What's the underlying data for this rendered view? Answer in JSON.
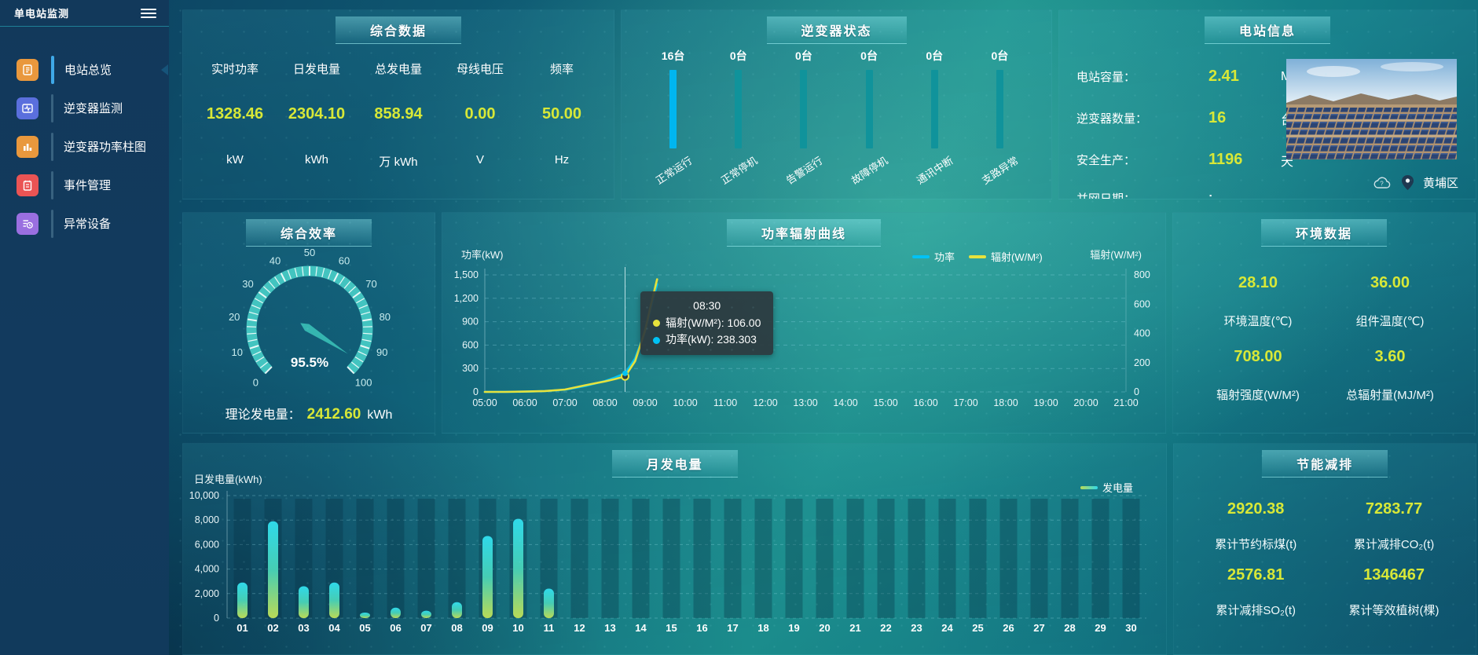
{
  "app_title": "单电站监测",
  "sidebar": {
    "items": [
      {
        "label": "电站总览",
        "active": true
      },
      {
        "label": "逆变器监测",
        "active": false
      },
      {
        "label": "逆变器功率柱图",
        "active": false
      },
      {
        "label": "事件管理",
        "active": false
      },
      {
        "label": "异常设备",
        "active": false
      }
    ]
  },
  "panels": {
    "overview": {
      "title": "综合数据",
      "metrics": [
        {
          "label": "实时功率",
          "value": "1328.46",
          "unit": "kW"
        },
        {
          "label": "日发电量",
          "value": "2304.10",
          "unit": "kWh"
        },
        {
          "label": "总发电量",
          "value": "858.94",
          "unit": "万 kWh"
        },
        {
          "label": "母线电压",
          "value": "0.00",
          "unit": "V"
        },
        {
          "label": "频率",
          "value": "50.00",
          "unit": "Hz"
        }
      ]
    },
    "inverter": {
      "title": "逆变器状态"
    },
    "station": {
      "title": "电站信息",
      "rows": [
        {
          "label": "电站容量：",
          "value": "2.41",
          "unit": "MW"
        },
        {
          "label": "逆变器数量：",
          "value": "16",
          "unit": "台"
        },
        {
          "label": "安全生产：",
          "value": "1196",
          "unit": "天"
        },
        {
          "label": "并网日期：",
          "value": ":",
          "unit": ""
        }
      ],
      "location": "黄埔区"
    },
    "efficiency": {
      "title": "综合效率",
      "theory_label": "理论发电量：",
      "theory_value": "2412.60",
      "theory_unit": "kWh"
    },
    "curve": {
      "title": "功率辐射曲线"
    },
    "environment": {
      "title": "环境数据",
      "metrics": [
        {
          "value": "28.10",
          "label": "环境温度(℃)"
        },
        {
          "value": "36.00",
          "label": "组件温度(℃)"
        },
        {
          "value": "708.00",
          "label": "辐射强度(W/M²)"
        },
        {
          "value": "3.60",
          "label": "总辐射量(MJ/M²)"
        }
      ]
    },
    "monthly": {
      "title": "月发电量"
    },
    "saving": {
      "title": "节能减排",
      "metrics": [
        {
          "value": "2920.38",
          "label": "累计节约标煤(t)"
        },
        {
          "value": "7283.77",
          "label": "累计减排CO₂(t)"
        },
        {
          "value": "2576.81",
          "label": "累计减排SO₂(t)"
        },
        {
          "value": "1346467",
          "label": "累计等效植树(棵)"
        }
      ]
    }
  },
  "colors": {
    "accent_yellow": "#d8e837",
    "bar_highlight_blue": "#00b6f0",
    "bar_teal": "#10939b",
    "line_power": "#00c2f5",
    "line_radiation": "#e6e23c",
    "gauge_ring": "#43c4c0"
  },
  "chart_data": [
    {
      "id": "inverter_status",
      "type": "bar",
      "title": "逆变器状态",
      "categories": [
        "正常运行",
        "正常停机",
        "告警运行",
        "故障停机",
        "通讯中断",
        "支路异常"
      ],
      "values": [
        16,
        0,
        0,
        0,
        0,
        0
      ],
      "unit": "台",
      "highlight_color": "#00b6f0",
      "bar_color": "#10939b"
    },
    {
      "id": "efficiency_gauge",
      "type": "gauge",
      "title": "综合效率",
      "value": 95.5,
      "display": "95.5%",
      "min": 0,
      "max": 100,
      "tick_interval": 10
    },
    {
      "id": "power_radiation",
      "type": "line",
      "title": "功率辐射曲线",
      "x_ticks": [
        "05:00",
        "06:00",
        "07:00",
        "08:00",
        "09:00",
        "10:00",
        "11:00",
        "12:00",
        "13:00",
        "14:00",
        "15:00",
        "16:00",
        "17:00",
        "18:00",
        "19:00",
        "20:00",
        "21:00"
      ],
      "x_range": [
        5,
        21
      ],
      "left_axis": {
        "label": "功率(kW)",
        "ticks": [
          0,
          300,
          600,
          900,
          1200,
          1500
        ],
        "max": 1500
      },
      "right_axis": {
        "label": "辐射(W/M²)",
        "ticks": [
          0,
          200,
          400,
          600,
          800
        ],
        "max": 800
      },
      "series": [
        {
          "name": "功率",
          "color": "#00c2f5",
          "axis": "left",
          "points": [
            [
              5,
              0
            ],
            [
              5.5,
              1
            ],
            [
              6,
              3
            ],
            [
              6.5,
              10
            ],
            [
              7,
              28
            ],
            [
              7.5,
              75
            ],
            [
              8,
              140
            ],
            [
              8.25,
              185
            ],
            [
              8.5,
              238.3
            ],
            [
              8.75,
              430
            ],
            [
              9,
              780
            ],
            [
              9.15,
              1080
            ],
            [
              9.3,
              1380
            ]
          ]
        },
        {
          "name": "辐射(W/M²)",
          "color": "#e6e23c",
          "axis": "right",
          "points": [
            [
              5,
              0
            ],
            [
              5.5,
              0
            ],
            [
              6,
              2
            ],
            [
              6.5,
              6
            ],
            [
              7,
              16
            ],
            [
              7.5,
              45
            ],
            [
              8,
              72
            ],
            [
              8.25,
              88
            ],
            [
              8.5,
              106
            ],
            [
              8.75,
              210
            ],
            [
              9,
              420
            ],
            [
              9.15,
              600
            ],
            [
              9.3,
              770
            ]
          ]
        }
      ],
      "crosshair_x": 8.5,
      "tooltip": {
        "time": "08:30",
        "items": [
          {
            "label": "辐射(W/M²)",
            "value": "106.00",
            "color": "#e6e23c"
          },
          {
            "label": "功率(kW)",
            "value": "238.303",
            "color": "#00c2f5"
          }
        ]
      }
    },
    {
      "id": "monthly_energy",
      "type": "bar",
      "title": "月发电量",
      "ylabel": "日发电量(kWh)",
      "legend": "发电量",
      "categories": [
        "01",
        "02",
        "03",
        "04",
        "05",
        "06",
        "07",
        "08",
        "09",
        "10",
        "11",
        "12",
        "13",
        "14",
        "15",
        "16",
        "17",
        "18",
        "19",
        "20",
        "21",
        "22",
        "23",
        "24",
        "25",
        "26",
        "27",
        "28",
        "29",
        "30"
      ],
      "values": [
        2900,
        7900,
        2600,
        2900,
        450,
        850,
        600,
        1300,
        6700,
        8100,
        2400,
        0,
        0,
        0,
        0,
        0,
        0,
        0,
        0,
        0,
        0,
        0,
        0,
        0,
        0,
        0,
        0,
        0,
        0,
        0
      ],
      "y_ticks": [
        0,
        2000,
        4000,
        6000,
        8000,
        10000
      ],
      "ylim": [
        0,
        10000
      ]
    }
  ]
}
